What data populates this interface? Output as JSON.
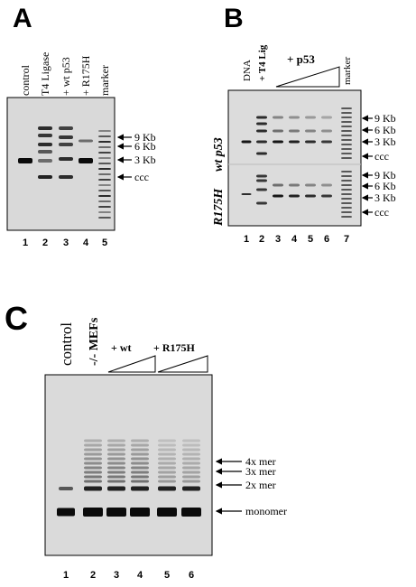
{
  "panels": [
    {
      "label": "A",
      "lanes": [
        "control",
        "T4 Ligase",
        "+ wt p53",
        "+ R175H",
        "marker"
      ],
      "lane_numbers": [
        "1",
        "2",
        "3",
        "4",
        "5"
      ],
      "markers": [
        "9 Kb",
        "6 Kb",
        "3 Kb",
        "ccc"
      ]
    },
    {
      "label": "B",
      "lanes": [
        "DNA",
        "+ T4 Lig",
        "+ p53",
        "marker"
      ],
      "row_labels": [
        "wt p53",
        "R175H"
      ],
      "lane_numbers": [
        "1",
        "2",
        "3",
        "4",
        "5",
        "6",
        "7"
      ],
      "markers_top": [
        "9 Kb",
        "6 Kb",
        "3 Kb",
        "ccc"
      ],
      "markers_bottom": [
        "9 Kb",
        "6 Kb",
        "3 Kb",
        "ccc"
      ]
    },
    {
      "label": "C",
      "lanes": [
        "control",
        "-/- MEFs",
        "+ wt",
        "+ R175H"
      ],
      "lane_numbers": [
        "1",
        "2",
        "3",
        "4",
        "5",
        "6"
      ],
      "markers": [
        "4x mer",
        "3x mer",
        "2x mer",
        "monomer"
      ]
    }
  ]
}
